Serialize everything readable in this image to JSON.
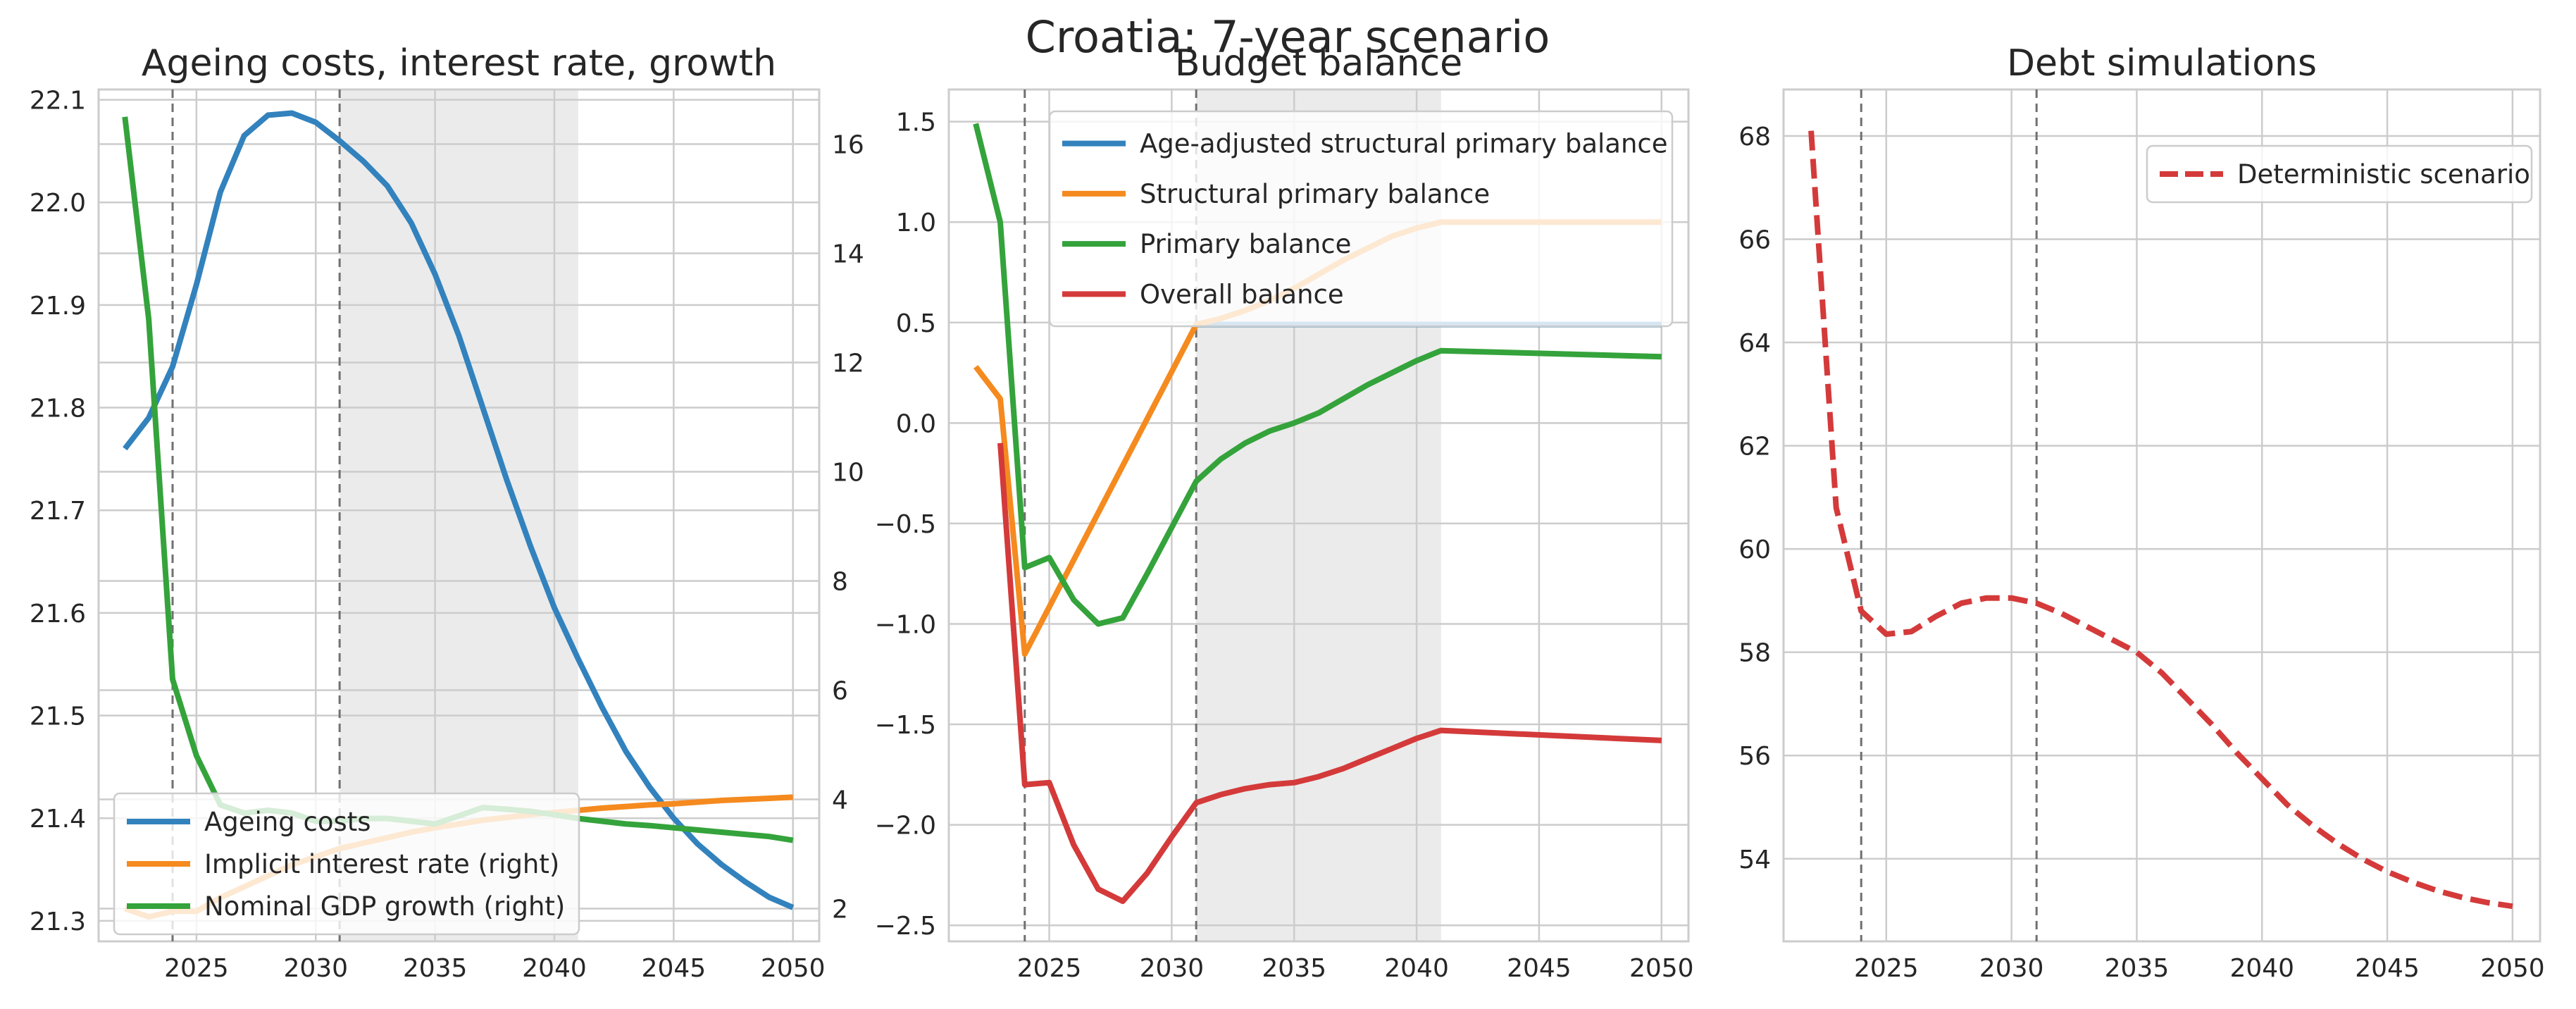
{
  "suptitle": "Croatia: 7-year scenario",
  "colors": {
    "blue": "#3282bd",
    "orange": "#f58a1f",
    "green": "#34a33b",
    "red": "#d43a3a",
    "grid": "#cccccc",
    "shade": "#ebebeb",
    "vline": "#707070"
  },
  "chart_data": [
    {
      "type": "line",
      "title": "Ageing costs, interest rate, growth",
      "xlim": [
        2020.9,
        2051.1
      ],
      "ylim": [
        21.28,
        22.11
      ],
      "y2lim": [
        1.4,
        17.0
      ],
      "xticks": [
        2025,
        2030,
        2035,
        2040,
        2045,
        2050
      ],
      "xtick_labels": [
        "2025",
        "2030",
        "2035",
        "2040",
        "2045",
        "2050"
      ],
      "yticks": [
        21.3,
        21.4,
        21.5,
        21.6,
        21.7,
        21.8,
        21.9,
        22.0,
        22.1
      ],
      "ytick_labels": [
        "21.3",
        "21.4",
        "21.5",
        "21.6",
        "21.7",
        "21.8",
        "21.9",
        "22.0",
        "22.1"
      ],
      "y2ticks": [
        2,
        4,
        6,
        8,
        10,
        12,
        14,
        16
      ],
      "y2tick_labels": [
        "2",
        "4",
        "6",
        "8",
        "10",
        "12",
        "14",
        "16"
      ],
      "shade": [
        2031,
        2041
      ],
      "vlines": [
        2024,
        2031
      ],
      "legend_position": "lower-left",
      "grid": true,
      "series": [
        {
          "name": "Ageing costs",
          "color": "blue",
          "axis": "left",
          "style": "solid",
          "x": [
            2022,
            2023,
            2024,
            2025,
            2026,
            2027,
            2028,
            2029,
            2030,
            2031,
            2032,
            2033,
            2034,
            2035,
            2036,
            2037,
            2038,
            2039,
            2040,
            2041,
            2042,
            2043,
            2044,
            2045,
            2046,
            2047,
            2048,
            2049,
            2050
          ],
          "y": [
            21.76,
            21.79,
            21.84,
            21.92,
            22.01,
            22.065,
            22.085,
            22.087,
            22.078,
            22.06,
            22.04,
            22.016,
            21.98,
            21.93,
            21.87,
            21.8,
            21.73,
            21.665,
            21.605,
            21.555,
            21.508,
            21.465,
            21.43,
            21.4,
            21.375,
            21.355,
            21.338,
            21.323,
            21.313
          ]
        },
        {
          "name": "Implicit interest rate (right)",
          "color": "orange",
          "axis": "right",
          "style": "solid",
          "x": [
            2022,
            2023,
            2024,
            2025,
            2026,
            2027,
            2028,
            2029,
            2030,
            2031,
            2032,
            2033,
            2034,
            2035,
            2036,
            2037,
            2038,
            2039,
            2040,
            2041,
            2042,
            2043,
            2044,
            2045,
            2046,
            2047,
            2048,
            2049,
            2050
          ],
          "y": [
            2.0,
            1.85,
            1.95,
            1.95,
            2.2,
            2.4,
            2.6,
            2.8,
            2.95,
            3.1,
            3.2,
            3.3,
            3.4,
            3.48,
            3.55,
            3.62,
            3.67,
            3.72,
            3.76,
            3.8,
            3.84,
            3.87,
            3.9,
            3.92,
            3.95,
            3.98,
            4.0,
            4.02,
            4.04
          ]
        },
        {
          "name": "Nominal GDP growth (right)",
          "color": "green",
          "axis": "right",
          "style": "solid",
          "x": [
            2022,
            2023,
            2024,
            2025,
            2026,
            2027,
            2028,
            2029,
            2030,
            2031,
            2032,
            2033,
            2034,
            2035,
            2036,
            2037,
            2038,
            2039,
            2040,
            2041,
            2042,
            2043,
            2044,
            2045,
            2046,
            2047,
            2048,
            2049,
            2050
          ],
          "y": [
            16.5,
            12.8,
            6.2,
            4.8,
            3.9,
            3.75,
            3.8,
            3.75,
            3.6,
            3.6,
            3.65,
            3.65,
            3.6,
            3.55,
            3.7,
            3.85,
            3.82,
            3.78,
            3.72,
            3.65,
            3.6,
            3.55,
            3.52,
            3.48,
            3.44,
            3.4,
            3.36,
            3.32,
            3.25
          ]
        }
      ]
    },
    {
      "type": "line",
      "title": "Budget balance",
      "xlim": [
        2020.9,
        2051.1
      ],
      "ylim": [
        -2.58,
        1.66
      ],
      "xticks": [
        2025,
        2030,
        2035,
        2040,
        2045,
        2050
      ],
      "xtick_labels": [
        "2025",
        "2030",
        "2035",
        "2040",
        "2045",
        "2050"
      ],
      "yticks": [
        -2.5,
        -2.0,
        -1.5,
        -1.0,
        -0.5,
        0.0,
        0.5,
        1.0,
        1.5
      ],
      "ytick_labels": [
        "−2.5",
        "−2.0",
        "−1.5",
        "−1.0",
        "−0.5",
        "0.0",
        "0.5",
        "1.0",
        "1.5"
      ],
      "shade": [
        2031,
        2041
      ],
      "vlines": [
        2024,
        2031
      ],
      "legend_position": "upper-right",
      "grid": true,
      "series": [
        {
          "name": "Age-adjusted structural primary balance",
          "color": "blue",
          "style": "solid",
          "x": [
            2031,
            2050
          ],
          "y": [
            0.49,
            0.49
          ]
        },
        {
          "name": "Structural primary balance",
          "color": "orange",
          "style": "solid",
          "x": [
            2022,
            2023,
            2024,
            2031,
            2032,
            2033,
            2034,
            2035,
            2036,
            2037,
            2038,
            2039,
            2040,
            2041,
            2050
          ],
          "y": [
            0.28,
            0.12,
            -1.15,
            0.49,
            0.52,
            0.56,
            0.61,
            0.67,
            0.74,
            0.81,
            0.87,
            0.93,
            0.97,
            1.0,
            1.0
          ]
        },
        {
          "name": "Primary balance",
          "color": "green",
          "style": "solid",
          "x": [
            2022,
            2023,
            2024,
            2025,
            2026,
            2027,
            2028,
            2029,
            2030,
            2031,
            2032,
            2033,
            2034,
            2035,
            2036,
            2037,
            2038,
            2039,
            2040,
            2041,
            2050
          ],
          "y": [
            1.49,
            1.0,
            -0.72,
            -0.67,
            -0.88,
            -1.0,
            -0.97,
            -0.75,
            -0.52,
            -0.29,
            -0.18,
            -0.1,
            -0.04,
            0.0,
            0.05,
            0.12,
            0.19,
            0.25,
            0.31,
            0.36,
            0.33
          ]
        },
        {
          "name": "Overall balance",
          "color": "red",
          "style": "solid",
          "x": [
            2023,
            2024,
            2025,
            2026,
            2027,
            2028,
            2029,
            2030,
            2031,
            2032,
            2033,
            2034,
            2035,
            2036,
            2037,
            2038,
            2039,
            2040,
            2041,
            2050
          ],
          "y": [
            -0.1,
            -1.8,
            -1.79,
            -2.1,
            -2.32,
            -2.38,
            -2.24,
            -2.06,
            -1.89,
            -1.85,
            -1.82,
            -1.8,
            -1.79,
            -1.76,
            -1.72,
            -1.67,
            -1.62,
            -1.57,
            -1.53,
            -1.58
          ]
        }
      ]
    },
    {
      "type": "line",
      "title": "Debt simulations",
      "xlim": [
        2020.9,
        2051.1
      ],
      "ylim": [
        52.4,
        68.9
      ],
      "xticks": [
        2025,
        2030,
        2035,
        2040,
        2045,
        2050
      ],
      "xtick_labels": [
        "2025",
        "2030",
        "2035",
        "2040",
        "2045",
        "2050"
      ],
      "yticks": [
        54,
        56,
        58,
        60,
        62,
        64,
        66,
        68
      ],
      "ytick_labels": [
        "54",
        "56",
        "58",
        "60",
        "62",
        "64",
        "66",
        "68"
      ],
      "vlines": [
        2024,
        2031
      ],
      "legend_position": "upper-right",
      "grid": true,
      "series": [
        {
          "name": "Deterministic scenario",
          "color": "red",
          "style": "dashed",
          "x": [
            2022,
            2023,
            2024,
            2025,
            2026,
            2027,
            2028,
            2029,
            2030,
            2031,
            2032,
            2033,
            2034,
            2035,
            2036,
            2037,
            2038,
            2039,
            2040,
            2041,
            2042,
            2043,
            2044,
            2045,
            2046,
            2047,
            2048,
            2049,
            2050
          ],
          "y": [
            68.1,
            60.8,
            58.8,
            58.35,
            58.4,
            58.7,
            58.95,
            59.05,
            59.05,
            58.95,
            58.75,
            58.5,
            58.25,
            58.0,
            57.6,
            57.1,
            56.6,
            56.05,
            55.55,
            55.05,
            54.65,
            54.3,
            54.0,
            53.75,
            53.55,
            53.38,
            53.25,
            53.15,
            53.08
          ]
        }
      ]
    }
  ]
}
